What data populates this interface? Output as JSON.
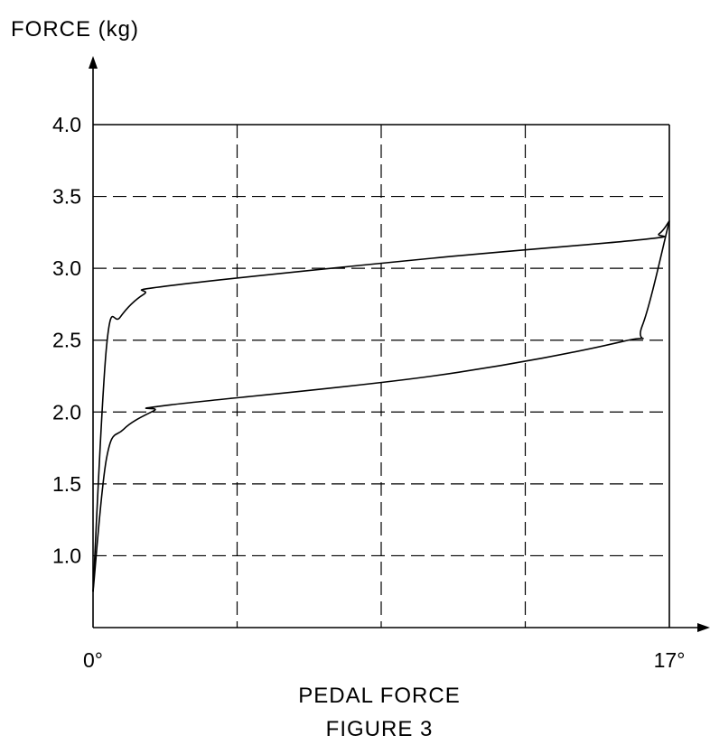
{
  "chart_data": {
    "type": "line",
    "title": "",
    "ylabel": "FORCE (kg)",
    "xlabel": "PEDAL FORCE",
    "caption": "FIGURE 3",
    "ylim": [
      0.5,
      4.0
    ],
    "xlim": [
      0,
      17
    ],
    "y_ticks": [
      "1.0",
      "1.5",
      "2.0",
      "2.5",
      "3.0",
      "3.5",
      "4.0"
    ],
    "x_ticks": [
      "0°",
      "17°"
    ],
    "grid": true,
    "series": [
      {
        "x": [
          0,
          0.4,
          0.8,
          1.5,
          2.3,
          10,
          16.2,
          16.7,
          17
        ],
        "y": [
          0.75,
          2.46,
          2.66,
          2.82,
          2.88,
          3.07,
          3.2,
          3.24,
          3.33
        ]
      },
      {
        "x": [
          0,
          0.4,
          0.9,
          1.8,
          2.3,
          10,
          15.6,
          16.2,
          17
        ],
        "y": [
          0.75,
          1.68,
          1.88,
          2.01,
          2.05,
          2.25,
          2.49,
          2.6,
          3.33
        ]
      }
    ]
  }
}
